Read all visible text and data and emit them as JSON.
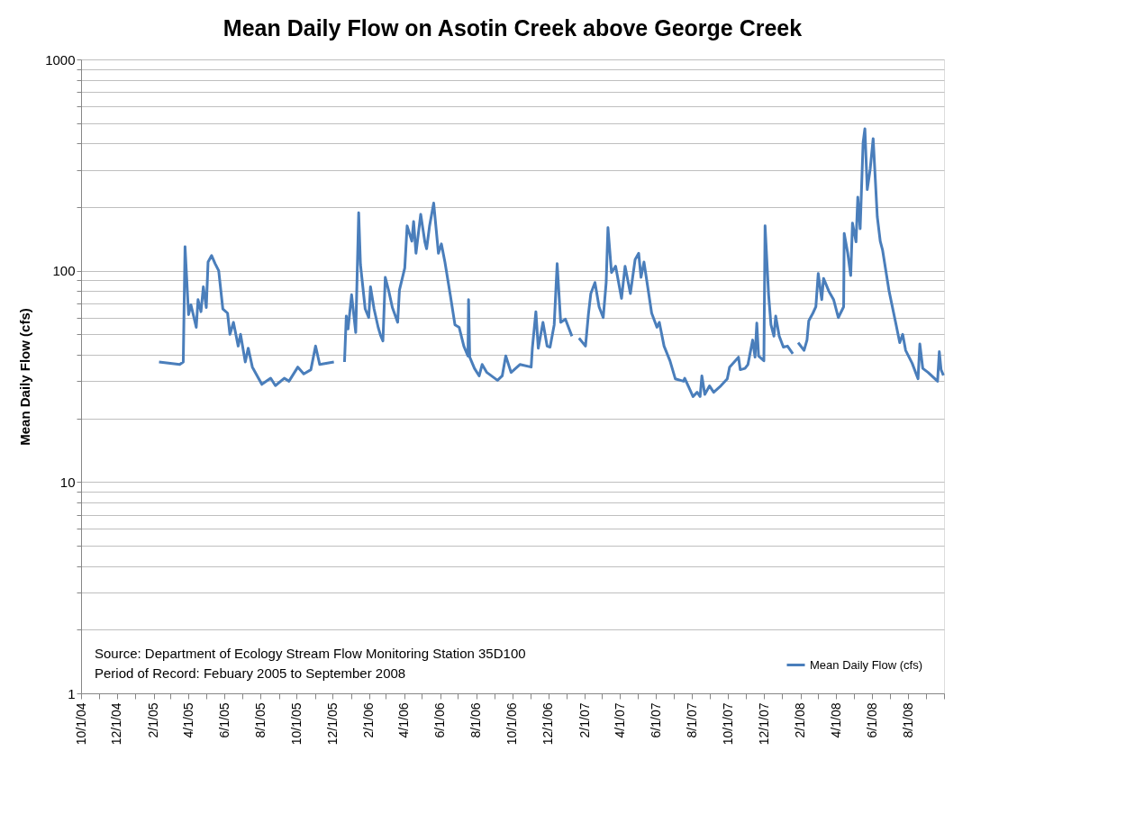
{
  "chart_data": {
    "type": "line",
    "title": "Mean Daily Flow on Asotin Creek above George Creek",
    "ylabel": "Mean Daily Flow (cfs)",
    "annotations": [
      "Source:  Department of Ecology  Stream Flow Monitoring Station 35D100",
      "Period of Record: Febuary 2005  to September 2008"
    ],
    "log": true,
    "grid": "y",
    "legend": "bottom right",
    "marker": "none",
    "line_style": "solid",
    "xlim": [
      "2004-10-01",
      "2008-10-01"
    ],
    "xticks": [
      {
        "value": "2004-10-01",
        "label": "10/1/04"
      },
      {
        "value": "2004-11-01",
        "label": null
      },
      {
        "value": "2004-12-01",
        "label": "12/1/04"
      },
      {
        "value": "2005-01-01",
        "label": null
      },
      {
        "value": "2005-02-01",
        "label": "2/1/05"
      },
      {
        "value": "2005-03-01",
        "label": null
      },
      {
        "value": "2005-04-01",
        "label": "4/1/05"
      },
      {
        "value": "2005-05-01",
        "label": null
      },
      {
        "value": "2005-06-01",
        "label": "6/1/05"
      },
      {
        "value": "2005-07-01",
        "label": null
      },
      {
        "value": "2005-08-01",
        "label": "8/1/05"
      },
      {
        "value": "2005-09-01",
        "label": null
      },
      {
        "value": "2005-10-01",
        "label": "10/1/05"
      },
      {
        "value": "2005-11-01",
        "label": null
      },
      {
        "value": "2005-12-01",
        "label": "12/1/05"
      },
      {
        "value": "2006-01-01",
        "label": null
      },
      {
        "value": "2006-02-01",
        "label": "2/1/06"
      },
      {
        "value": "2006-03-01",
        "label": null
      },
      {
        "value": "2006-04-01",
        "label": "4/1/06"
      },
      {
        "value": "2006-05-01",
        "label": null
      },
      {
        "value": "2006-06-01",
        "label": "6/1/06"
      },
      {
        "value": "2006-07-01",
        "label": null
      },
      {
        "value": "2006-08-01",
        "label": "8/1/06"
      },
      {
        "value": "2006-09-01",
        "label": null
      },
      {
        "value": "2006-10-01",
        "label": "10/1/06"
      },
      {
        "value": "2006-11-01",
        "label": null
      },
      {
        "value": "2006-12-01",
        "label": "12/1/06"
      },
      {
        "value": "2007-01-01",
        "label": null
      },
      {
        "value": "2007-02-01",
        "label": "2/1/07"
      },
      {
        "value": "2007-03-01",
        "label": null
      },
      {
        "value": "2007-04-01",
        "label": "4/1/07"
      },
      {
        "value": "2007-05-01",
        "label": null
      },
      {
        "value": "2007-06-01",
        "label": "6/1/07"
      },
      {
        "value": "2007-07-01",
        "label": null
      },
      {
        "value": "2007-08-01",
        "label": "8/1/07"
      },
      {
        "value": "2007-09-01",
        "label": null
      },
      {
        "value": "2007-10-01",
        "label": "10/1/07"
      },
      {
        "value": "2007-11-01",
        "label": null
      },
      {
        "value": "2007-12-01",
        "label": "12/1/07"
      },
      {
        "value": "2008-01-01",
        "label": null
      },
      {
        "value": "2008-02-01",
        "label": "2/1/08"
      },
      {
        "value": "2008-03-01",
        "label": null
      },
      {
        "value": "2008-04-01",
        "label": "4/1/08"
      },
      {
        "value": "2008-05-01",
        "label": null
      },
      {
        "value": "2008-06-01",
        "label": "6/1/08"
      },
      {
        "value": "2008-07-01",
        "label": null
      },
      {
        "value": "2008-08-01",
        "label": "8/1/08"
      },
      {
        "value": "2008-09-01",
        "label": null
      },
      {
        "value": "2008-10-01",
        "label": null
      }
    ],
    "ylim": [
      1,
      1000
    ],
    "yticks": [
      1,
      {
        "value": 2,
        "label": null
      },
      {
        "value": 3,
        "label": null
      },
      {
        "value": 4,
        "label": null
      },
      {
        "value": 5,
        "label": null
      },
      {
        "value": 6,
        "label": null
      },
      {
        "value": 7,
        "label": null
      },
      {
        "value": 8,
        "label": null
      },
      {
        "value": 9,
        "label": null
      },
      10,
      {
        "value": 20,
        "label": null
      },
      {
        "value": 30,
        "label": null
      },
      {
        "value": 40,
        "label": null
      },
      {
        "value": 50,
        "label": null
      },
      {
        "value": 60,
        "label": null
      },
      {
        "value": 70,
        "label": null
      },
      {
        "value": 80,
        "label": null
      },
      {
        "value": 90,
        "label": null
      },
      100,
      {
        "value": 200,
        "label": null
      },
      {
        "value": 300,
        "label": null
      },
      {
        "value": 400,
        "label": null
      },
      {
        "value": 500,
        "label": null
      },
      {
        "value": 600,
        "label": null
      },
      {
        "value": 700,
        "label": null
      },
      {
        "value": 800,
        "label": null
      },
      {
        "value": 900,
        "label": null
      },
      1000
    ],
    "x": [
      "2005-02-10",
      "2005-03-17",
      "2005-03-23",
      "2005-03-26",
      "2005-04-01",
      "2005-04-05",
      "2005-04-14",
      "2005-04-17",
      "2005-04-22",
      "2005-04-26",
      "2005-05-01",
      "2005-05-04",
      "2005-05-10",
      "2005-05-16",
      "2005-05-22",
      "2005-05-29",
      "2005-06-06",
      "2005-06-10",
      "2005-06-16",
      "2005-06-24",
      "2005-06-28",
      "2005-07-06",
      "2005-07-11",
      "2005-07-18",
      "2005-08-03",
      "2005-08-18",
      "2005-08-26",
      "2005-09-10",
      "2005-09-18",
      "2005-10-03",
      "2005-10-13",
      "2005-10-25",
      "2005-11-02",
      "2005-11-09",
      "2005-12-03",
      "2005-12-12",
      "2005-12-21",
      "2005-12-24",
      "2005-12-27",
      "2006-01-02",
      "2006-01-09",
      "2006-01-14",
      "2006-01-17",
      "2006-01-25",
      "2006-01-31",
      "2006-02-03",
      "2006-02-09",
      "2006-02-16",
      "2006-02-20",
      "2006-02-24",
      "2006-02-28",
      "2006-03-06",
      "2006-03-12",
      "2006-03-21",
      "2006-03-24",
      "2006-04-02",
      "2006-04-06",
      "2006-04-14",
      "2006-04-17",
      "2006-04-21",
      "2006-04-29",
      "2006-05-06",
      "2006-05-09",
      "2006-05-14",
      "2006-05-21",
      "2006-05-29",
      "2006-06-03",
      "2006-06-09",
      "2006-06-18",
      "2006-06-26",
      "2006-07-03",
      "2006-07-11",
      "2006-07-18",
      "2006-07-19",
      "2006-07-21",
      "2006-07-29",
      "2006-08-06",
      "2006-08-11",
      "2006-08-19",
      "2006-09-06",
      "2006-09-14",
      "2006-09-20",
      "2006-09-29",
      "2006-10-14",
      "2006-11-02",
      "2006-11-04",
      "2006-11-10",
      "2006-11-14",
      "2006-11-22",
      "2006-11-29",
      "2006-12-04",
      "2006-12-11",
      "2006-12-16",
      "2006-12-22",
      "2006-12-30",
      "2007-01-10",
      "2007-01-16",
      "2007-01-22",
      "2007-02-02",
      "2007-02-07",
      "2007-02-11",
      "2007-02-18",
      "2007-02-25",
      "2007-03-04",
      "2007-03-09",
      "2007-03-12",
      "2007-03-18",
      "2007-03-25",
      "2007-04-04",
      "2007-04-10",
      "2007-04-19",
      "2007-04-27",
      "2007-05-03",
      "2007-05-07",
      "2007-05-12",
      "2007-05-25",
      "2007-06-03",
      "2007-06-07",
      "2007-06-15",
      "2007-06-25",
      "2007-07-04",
      "2007-07-18",
      "2007-07-20",
      "2007-08-03",
      "2007-08-10",
      "2007-08-15",
      "2007-08-18",
      "2007-08-23",
      "2007-08-31",
      "2007-09-07",
      "2007-09-19",
      "2007-09-30",
      "2007-10-04",
      "2007-10-19",
      "2007-10-22",
      "2007-10-30",
      "2007-11-04",
      "2007-11-12",
      "2007-11-16",
      "2007-11-19",
      "2007-11-22",
      "2007-12-01",
      "2007-12-03",
      "2007-12-09",
      "2007-12-13",
      "2007-12-18",
      "2007-12-21",
      "2007-12-27",
      "2008-01-03",
      "2008-01-10",
      "2008-01-19",
      "2008-01-24",
      "2008-01-28",
      "2008-02-07",
      "2008-02-12",
      "2008-02-15",
      "2008-02-22",
      "2008-02-27",
      "2008-03-02",
      "2008-03-08",
      "2008-03-11",
      "2008-03-20",
      "2008-03-28",
      "2008-04-05",
      "2008-04-14",
      "2008-04-15",
      "2008-04-21",
      "2008-04-26",
      "2008-04-29",
      "2008-05-05",
      "2008-05-08",
      "2008-05-12",
      "2008-05-17",
      "2008-05-20",
      "2008-05-24",
      "2008-05-29",
      "2008-06-03",
      "2008-06-10",
      "2008-06-15",
      "2008-06-19",
      "2008-06-30",
      "2008-07-11",
      "2008-07-18",
      "2008-07-23",
      "2008-07-28",
      "2008-08-08",
      "2008-08-18",
      "2008-08-21",
      "2008-08-26",
      "2008-09-04",
      "2008-09-20",
      "2008-09-23",
      "2008-09-26",
      "2008-09-30"
    ],
    "series": [
      {
        "name": "Mean Daily Flow (cfs)",
        "color": "#4a7ebb",
        "values": [
          37,
          36,
          37,
          130,
          62,
          69,
          54,
          73,
          64,
          84,
          67,
          110,
          118,
          108,
          100,
          66,
          63,
          50,
          57,
          44,
          50,
          37,
          43,
          35,
          29,
          31,
          28.6,
          31,
          30,
          35,
          32.5,
          34,
          44,
          36,
          37,
          null,
          37,
          61,
          53,
          77,
          51,
          188,
          107,
          66,
          60,
          84,
          66,
          54,
          49.5,
          46.5,
          93,
          80,
          67,
          57,
          81,
          103,
          163,
          138,
          171,
          121,
          185,
          137,
          127,
          163,
          209,
          121,
          134,
          110,
          77,
          55.5,
          54,
          44,
          39.5,
          73,
          39,
          34.5,
          31.8,
          36,
          33,
          30.3,
          31.8,
          39.5,
          33,
          36,
          35,
          43,
          64,
          43,
          57,
          44,
          43.5,
          55.5,
          108,
          57,
          59,
          49,
          null,
          48,
          44,
          62.5,
          78,
          88,
          67.5,
          60,
          88,
          160,
          98,
          105,
          74,
          105,
          78,
          113,
          121,
          93,
          110,
          63,
          54,
          57,
          44,
          37.5,
          30.8,
          30,
          31,
          25.4,
          26.6,
          25.4,
          31.8,
          26,
          28.5,
          26.6,
          28.5,
          30.8,
          35,
          39,
          34,
          34.5,
          36,
          47,
          39,
          56.5,
          39.5,
          37.5,
          163,
          77,
          55.5,
          49,
          61,
          49,
          43.5,
          44,
          40.5,
          null,
          45.7,
          42,
          47,
          58,
          63,
          67.5,
          97,
          73,
          92,
          80,
          73,
          60,
          67.5,
          150,
          121,
          95,
          168,
          137,
          223,
          158,
          405,
          470,
          242,
          303,
          422,
          180,
          138,
          125,
          80,
          57,
          45.7,
          50,
          42,
          36.5,
          30.8,
          45,
          34.5,
          33,
          30,
          41.4,
          34,
          32
        ]
      }
    ]
  }
}
